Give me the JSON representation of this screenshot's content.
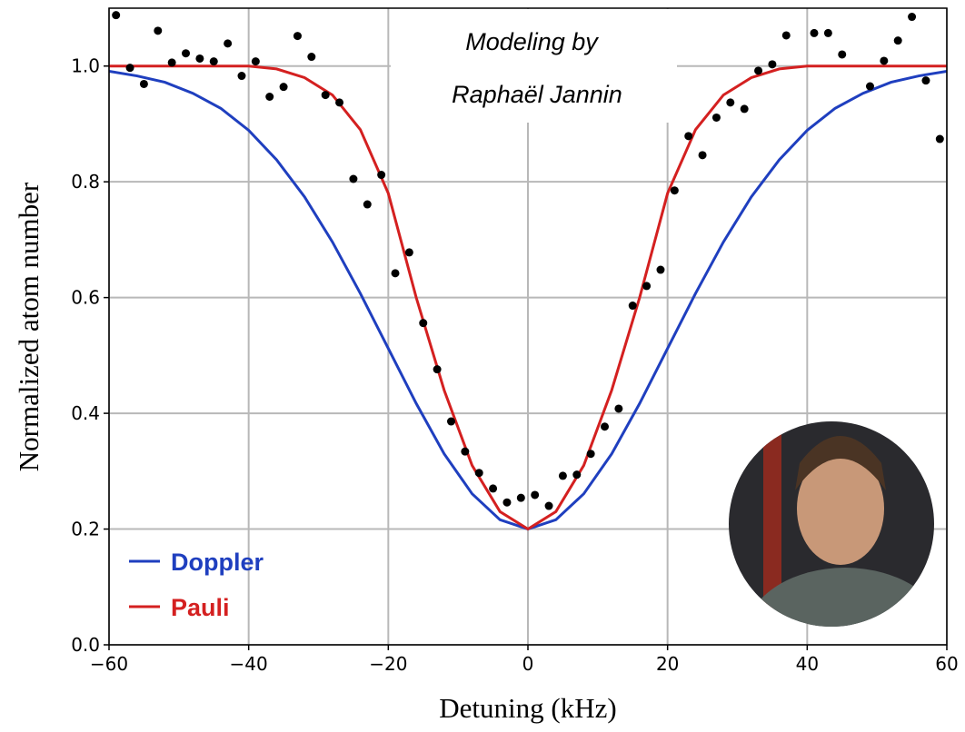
{
  "chart_data": {
    "type": "line",
    "xlabel": "Detuning (kHz)",
    "ylabel": "Normalized atom number",
    "annotation": [
      "Modeling by",
      "Raphaël Jannin"
    ],
    "xlim": [
      -60,
      60
    ],
    "ylim": [
      0,
      1.1
    ],
    "grid": true,
    "xticks": [
      {
        "value": -60,
        "label": "−60"
      },
      {
        "value": -40,
        "label": "−40"
      },
      {
        "value": -20,
        "label": "−20"
      },
      0,
      20,
      40,
      60
    ],
    "yticks": [
      {
        "value": 0,
        "label": "0.0"
      },
      0.2,
      0.4,
      0.6,
      0.8,
      {
        "value": 1,
        "label": "1.0"
      }
    ],
    "legend_position": "lower left",
    "series": [
      {
        "name": "Doppler",
        "color": "#1f3fbf",
        "type": "line",
        "x": [
          -60,
          -56,
          -52,
          -48,
          -44,
          -40,
          -36,
          -32,
          -28,
          -24,
          -20,
          -16,
          -12,
          -8,
          -4,
          0,
          4,
          8,
          12,
          16,
          20,
          24,
          28,
          32,
          36,
          40,
          44,
          48,
          52,
          56,
          60
        ],
        "values": [
          0.991,
          0.983,
          0.972,
          0.953,
          0.927,
          0.889,
          0.838,
          0.774,
          0.696,
          0.607,
          0.512,
          0.417,
          0.33,
          0.261,
          0.216,
          0.2,
          0.216,
          0.261,
          0.33,
          0.417,
          0.512,
          0.607,
          0.696,
          0.774,
          0.838,
          0.889,
          0.927,
          0.953,
          0.972,
          0.983,
          0.991
        ]
      },
      {
        "name": "Pauli",
        "color": "#d42020",
        "type": "line",
        "x": [
          -60,
          -56,
          -52,
          -48,
          -44,
          -40,
          -36,
          -32,
          -28,
          -24,
          -20,
          -16,
          -12,
          -8,
          -4,
          0,
          4,
          8,
          12,
          16,
          20,
          24,
          28,
          32,
          36,
          40,
          44,
          48,
          52,
          56,
          60
        ],
        "values": [
          1.0,
          1.0,
          1.0,
          1.0,
          1.0,
          1.0,
          0.995,
          0.98,
          0.95,
          0.89,
          0.78,
          0.6,
          0.44,
          0.31,
          0.23,
          0.2,
          0.23,
          0.31,
          0.44,
          0.6,
          0.78,
          0.89,
          0.95,
          0.98,
          0.995,
          1.0,
          1.0,
          1.0,
          1.0,
          1.0,
          1.0
        ]
      },
      {
        "color": "#000000",
        "type": "scatter",
        "x": [
          -59,
          -57,
          -55,
          -53,
          -51,
          -49,
          -47,
          -45,
          -43,
          -41,
          -39,
          -37,
          -35,
          -33,
          -31,
          -29,
          -27,
          -25,
          -23,
          -21,
          -19,
          -17,
          -15,
          -13,
          -11,
          -9,
          -7,
          -5,
          -3,
          -1,
          1,
          3,
          5,
          7,
          9,
          11,
          13,
          15,
          17,
          19,
          21,
          23,
          25,
          27,
          29,
          31,
          33,
          35,
          37,
          41,
          43,
          45,
          49,
          51,
          53,
          55,
          57,
          59
        ],
        "values": [
          1.088,
          0.997,
          0.969,
          1.061,
          1.006,
          1.022,
          1.013,
          1.008,
          1.039,
          0.983,
          1.008,
          0.947,
          0.964,
          1.052,
          1.016,
          0.95,
          0.937,
          0.805,
          0.761,
          0.812,
          0.642,
          0.678,
          0.556,
          0.476,
          0.386,
          0.334,
          0.297,
          0.27,
          0.246,
          0.254,
          0.259,
          0.24,
          0.292,
          0.294,
          0.33,
          0.377,
          0.408,
          0.586,
          0.62,
          0.648,
          0.785,
          0.879,
          0.846,
          0.911,
          0.937,
          0.926,
          0.992,
          1.003,
          1.053,
          1.057,
          1.057,
          1.02,
          0.965,
          1.009,
          1.044,
          1.085,
          0.975,
          0.874
        ]
      }
    ]
  }
}
